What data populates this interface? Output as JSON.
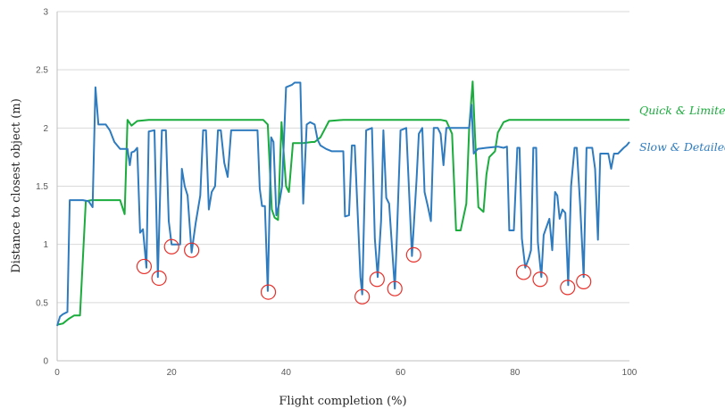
{
  "chart_data": {
    "type": "line",
    "xlabel": "Flight completion (%)",
    "ylabel": "Distance to closest object (m)",
    "xlim": [
      0,
      100
    ],
    "ylim": [
      0,
      3
    ],
    "xticks": [
      0,
      20,
      40,
      60,
      80,
      100
    ],
    "yticks": [
      0,
      0.5,
      1,
      1.5,
      2,
      2.5,
      3
    ],
    "grid": "horizontal",
    "legend": "right, labels at line ends",
    "series": [
      {
        "name": "Quick & Limited",
        "color": "#1aac3c",
        "points": [
          [
            0,
            0.31
          ],
          [
            1,
            0.32
          ],
          [
            2,
            0.36
          ],
          [
            3,
            0.39
          ],
          [
            4,
            0.39
          ],
          [
            5,
            1.37
          ],
          [
            6,
            1.38
          ],
          [
            7,
            1.38
          ],
          [
            8,
            1.38
          ],
          [
            9,
            1.38
          ],
          [
            10,
            1.38
          ],
          [
            11,
            1.38
          ],
          [
            11.8,
            1.26
          ],
          [
            12.3,
            2.07
          ],
          [
            13,
            2.02
          ],
          [
            14,
            2.06
          ],
          [
            16,
            2.07
          ],
          [
            20,
            2.07
          ],
          [
            25,
            2.07
          ],
          [
            30,
            2.07
          ],
          [
            36,
            2.07
          ],
          [
            36.8,
            2.03
          ],
          [
            37.5,
            1.3
          ],
          [
            38,
            1.23
          ],
          [
            38.6,
            1.21
          ],
          [
            39.2,
            2.05
          ],
          [
            40,
            1.5
          ],
          [
            40.5,
            1.45
          ],
          [
            41.2,
            1.87
          ],
          [
            43,
            1.87
          ],
          [
            44.5,
            1.88
          ],
          [
            45,
            1.88
          ],
          [
            46,
            1.92
          ],
          [
            47.5,
            2.06
          ],
          [
            50,
            2.07
          ],
          [
            55,
            2.07
          ],
          [
            60,
            2.07
          ],
          [
            65,
            2.07
          ],
          [
            67,
            2.07
          ],
          [
            68,
            2.06
          ],
          [
            69,
            1.95
          ],
          [
            69.7,
            1.12
          ],
          [
            70.5,
            1.12
          ],
          [
            71.5,
            1.35
          ],
          [
            72,
            2.0
          ],
          [
            72.6,
            2.4
          ],
          [
            73,
            1.95
          ],
          [
            73.6,
            1.32
          ],
          [
            74.5,
            1.28
          ],
          [
            75,
            1.6
          ],
          [
            75.5,
            1.75
          ],
          [
            76.5,
            1.8
          ],
          [
            77,
            1.96
          ],
          [
            78,
            2.05
          ],
          [
            79,
            2.07
          ],
          [
            80,
            2.07
          ],
          [
            85,
            2.07
          ],
          [
            90,
            2.07
          ],
          [
            95,
            2.07
          ],
          [
            100,
            2.07
          ]
        ]
      },
      {
        "name": "Slow & Detailed",
        "color": "#2e7bbf",
        "points": [
          [
            0,
            0.3
          ],
          [
            0.5,
            0.38
          ],
          [
            1,
            0.4
          ],
          [
            1.8,
            0.42
          ],
          [
            2.2,
            1.38
          ],
          [
            4.5,
            1.38
          ],
          [
            5.5,
            1.37
          ],
          [
            6.2,
            1.32
          ],
          [
            6.7,
            2.35
          ],
          [
            7.2,
            2.03
          ],
          [
            8.5,
            2.03
          ],
          [
            9.2,
            1.98
          ],
          [
            10,
            1.88
          ],
          [
            11,
            1.82
          ],
          [
            12.3,
            1.82
          ],
          [
            12.7,
            1.68
          ],
          [
            13,
            1.79
          ],
          [
            13.5,
            1.8
          ],
          [
            14,
            1.83
          ],
          [
            14.5,
            1.1
          ],
          [
            15,
            1.13
          ],
          [
            15.6,
            0.8
          ],
          [
            16,
            1.97
          ],
          [
            17,
            1.98
          ],
          [
            17.6,
            0.72
          ],
          [
            18.3,
            1.98
          ],
          [
            19,
            1.98
          ],
          [
            19.5,
            1.2
          ],
          [
            20,
            1.0
          ],
          [
            21,
            1.0
          ],
          [
            21.5,
            1.0
          ],
          [
            21.8,
            1.65
          ],
          [
            22.3,
            1.5
          ],
          [
            22.8,
            1.42
          ],
          [
            23.5,
            0.93
          ],
          [
            24.2,
            1.18
          ],
          [
            25,
            1.42
          ],
          [
            25.5,
            1.98
          ],
          [
            26,
            1.98
          ],
          [
            26.5,
            1.3
          ],
          [
            27,
            1.45
          ],
          [
            27.6,
            1.5
          ],
          [
            28.1,
            1.98
          ],
          [
            28.6,
            1.98
          ],
          [
            29.2,
            1.7
          ],
          [
            29.8,
            1.58
          ],
          [
            30.4,
            1.98
          ],
          [
            32,
            1.98
          ],
          [
            34,
            1.98
          ],
          [
            35,
            1.98
          ],
          [
            35.4,
            1.48
          ],
          [
            35.8,
            1.33
          ],
          [
            36.3,
            1.33
          ],
          [
            36.8,
            0.6
          ],
          [
            37.4,
            1.92
          ],
          [
            37.8,
            1.88
          ],
          [
            38.3,
            1.25
          ],
          [
            38.8,
            1.35
          ],
          [
            39.3,
            1.5
          ],
          [
            40,
            2.35
          ],
          [
            41,
            2.37
          ],
          [
            41.5,
            2.39
          ],
          [
            42.5,
            2.39
          ],
          [
            43,
            1.35
          ],
          [
            43.6,
            2.03
          ],
          [
            44.2,
            2.05
          ],
          [
            45,
            2.03
          ],
          [
            45.5,
            1.9
          ],
          [
            46,
            1.85
          ],
          [
            47,
            1.82
          ],
          [
            48,
            1.8
          ],
          [
            49,
            1.8
          ],
          [
            50,
            1.8
          ],
          [
            50.3,
            1.24
          ],
          [
            51,
            1.25
          ],
          [
            51.5,
            1.85
          ],
          [
            52,
            1.85
          ],
          [
            53,
            0.72
          ],
          [
            53.3,
            0.57
          ],
          [
            54,
            1.98
          ],
          [
            55,
            2.0
          ],
          [
            55.5,
            1.05
          ],
          [
            56,
            0.72
          ],
          [
            56.6,
            1.2
          ],
          [
            57,
            1.98
          ],
          [
            57.5,
            1.4
          ],
          [
            58,
            1.35
          ],
          [
            59,
            0.62
          ],
          [
            59.3,
            0.98
          ],
          [
            60,
            1.98
          ],
          [
            61,
            2.0
          ],
          [
            62,
            0.9
          ],
          [
            62.8,
            1.55
          ],
          [
            63.2,
            1.95
          ],
          [
            63.8,
            2.0
          ],
          [
            64.2,
            1.45
          ],
          [
            64.8,
            1.32
          ],
          [
            65.3,
            1.2
          ],
          [
            65.8,
            2.0
          ],
          [
            66.5,
            2.0
          ],
          [
            67,
            1.95
          ],
          [
            67.5,
            1.68
          ],
          [
            68,
            2.0
          ],
          [
            68.5,
            2.0
          ],
          [
            69,
            2.0
          ],
          [
            70,
            2.0
          ],
          [
            71,
            2.0
          ],
          [
            72,
            2.0
          ],
          [
            72.4,
            2.2
          ],
          [
            72.8,
            1.78
          ],
          [
            73.5,
            1.82
          ],
          [
            75,
            1.83
          ],
          [
            77,
            1.84
          ],
          [
            78,
            1.83
          ],
          [
            78.6,
            1.84
          ],
          [
            79,
            1.12
          ],
          [
            79.8,
            1.12
          ],
          [
            80.4,
            1.83
          ],
          [
            80.8,
            1.83
          ],
          [
            81.2,
            1.05
          ],
          [
            81.8,
            0.8
          ],
          [
            82.4,
            0.88
          ],
          [
            82.8,
            0.95
          ],
          [
            83.2,
            1.83
          ],
          [
            83.7,
            1.83
          ],
          [
            84,
            1.02
          ],
          [
            84.6,
            0.72
          ],
          [
            85,
            1.08
          ],
          [
            85.5,
            1.15
          ],
          [
            86,
            1.22
          ],
          [
            86.5,
            0.95
          ],
          [
            87,
            1.45
          ],
          [
            87.4,
            1.42
          ],
          [
            87.8,
            1.22
          ],
          [
            88.3,
            1.3
          ],
          [
            88.8,
            1.27
          ],
          [
            89.3,
            0.65
          ],
          [
            89.8,
            1.5
          ],
          [
            90.4,
            1.83
          ],
          [
            90.8,
            1.83
          ],
          [
            91.4,
            1.32
          ],
          [
            92,
            0.72
          ],
          [
            92.5,
            1.83
          ],
          [
            93.5,
            1.83
          ],
          [
            94,
            1.65
          ],
          [
            94.5,
            1.04
          ],
          [
            94.9,
            1.78
          ],
          [
            95.5,
            1.78
          ],
          [
            96.3,
            1.78
          ],
          [
            96.8,
            1.65
          ],
          [
            97.3,
            1.78
          ],
          [
            98,
            1.78
          ],
          [
            99,
            1.83
          ],
          [
            99.5,
            1.85
          ],
          [
            100,
            1.88
          ]
        ]
      }
    ],
    "annotations": {
      "type": "circle",
      "color": "#e8302a",
      "points": [
        [
          15.2,
          0.81
        ],
        [
          17.8,
          0.71
        ],
        [
          20,
          0.98
        ],
        [
          23.5,
          0.95
        ],
        [
          36.9,
          0.59
        ],
        [
          53.3,
          0.55
        ],
        [
          55.9,
          0.7
        ],
        [
          59,
          0.62
        ],
        [
          62.3,
          0.91
        ],
        [
          81.5,
          0.76
        ],
        [
          84.4,
          0.7
        ],
        [
          89.2,
          0.63
        ],
        [
          92,
          0.68
        ]
      ]
    }
  }
}
